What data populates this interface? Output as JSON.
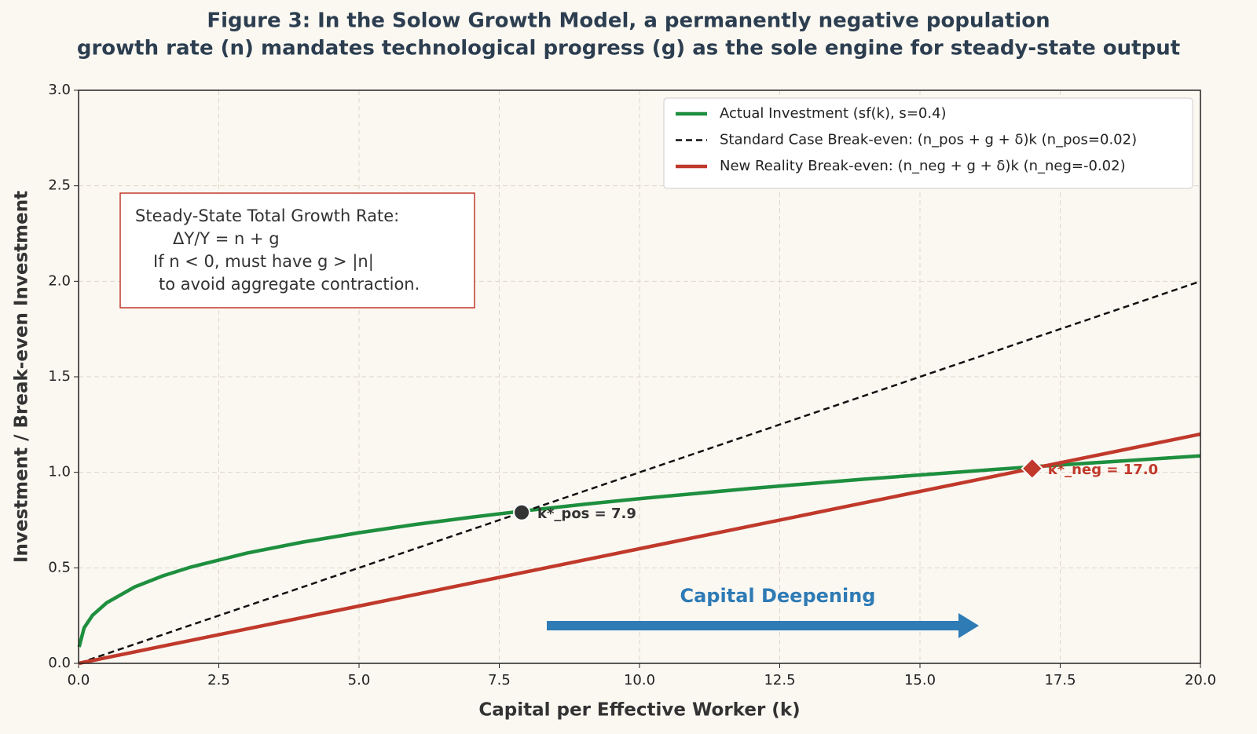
{
  "chart_data": {
    "type": "line",
    "title": [
      "Figure 3: In the Solow Growth Model, a permanently negative population",
      "growth rate (n) mandates technological progress (g) as the sole engine for steady-state output"
    ],
    "xlabel": "Capital per Effective Worker (k)",
    "ylabel": "Investment / Break-even Investment",
    "x": [
      0.01,
      0.1,
      0.25,
      0.5,
      1,
      1.5,
      2,
      3,
      4,
      5,
      6,
      7,
      8,
      9,
      10,
      12,
      14,
      16,
      17,
      18,
      20
    ],
    "series": [
      {
        "name": "Actual Investment (sf(k), s=0.4)",
        "color": "#1e8f3e",
        "dash": false,
        "values": [
          0.086,
          0.186,
          0.252,
          0.317,
          0.4,
          0.458,
          0.504,
          0.577,
          0.635,
          0.684,
          0.727,
          0.765,
          0.8,
          0.832,
          0.862,
          0.916,
          0.964,
          1.008,
          1.029,
          1.048,
          1.086
        ]
      },
      {
        "name": "Standard Case Break-even: (n_pos + g + δ)k (n_pos=0.02)",
        "color": "#111111",
        "dash": true,
        "values": [
          0.001,
          0.01,
          0.025,
          0.05,
          0.1,
          0.15,
          0.2,
          0.3,
          0.4,
          0.5,
          0.6,
          0.7,
          0.8,
          0.9,
          1.0,
          1.2,
          1.4,
          1.6,
          1.7,
          1.8,
          2.0
        ]
      },
      {
        "name": "New Reality Break-even: (n_neg + g + δ)k (n_neg=-0.02)",
        "color": "#c0392b",
        "dash": false,
        "values": [
          0.0006,
          0.006,
          0.015,
          0.03,
          0.06,
          0.09,
          0.12,
          0.18,
          0.24,
          0.3,
          0.36,
          0.42,
          0.48,
          0.54,
          0.6,
          0.72,
          0.84,
          0.96,
          1.02,
          1.08,
          1.2
        ]
      }
    ],
    "points": [
      {
        "label": "k*_pos = 7.9",
        "x": 7.9,
        "y": 0.79,
        "color": "#333333",
        "marker": "circle"
      },
      {
        "label": "k*_neg = 17.0",
        "x": 17.0,
        "y": 1.02,
        "color": "#c0392b",
        "marker": "diamond"
      }
    ],
    "annotation": "Capital Deepening",
    "textbox": [
      "Steady-State Total Growth Rate:",
      "ΔY/Y = n + g",
      "If n < 0, must have g > |n|",
      "to avoid aggregate contraction."
    ],
    "xlim": [
      0,
      20
    ],
    "xticks": [
      {
        "value": 0,
        "label": "0.0"
      },
      {
        "value": 2.5,
        "label": "2.5"
      },
      {
        "value": 5,
        "label": "5.0"
      },
      {
        "value": 7.5,
        "label": "7.5"
      },
      {
        "value": 10,
        "label": "10.0"
      },
      {
        "value": 12.5,
        "label": "12.5"
      },
      {
        "value": 15,
        "label": "15.0"
      },
      {
        "value": 17.5,
        "label": "17.5"
      },
      {
        "value": 20,
        "label": "20.0"
      }
    ],
    "ylim": [
      0,
      3
    ],
    "yticks": [
      {
        "value": 0,
        "label": "0.0"
      },
      {
        "value": 0.5,
        "label": "0.5"
      },
      {
        "value": 1,
        "label": "1.0"
      },
      {
        "value": 1.5,
        "label": "1.5"
      },
      {
        "value": 2,
        "label": "2.0"
      },
      {
        "value": 2.5,
        "label": "2.5"
      },
      {
        "value": 3,
        "label": "3.0"
      }
    ],
    "grid": true,
    "legend": "upper right"
  }
}
